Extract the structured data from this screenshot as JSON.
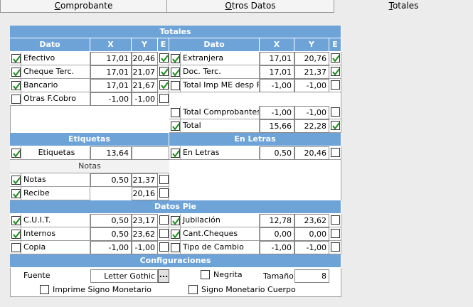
{
  "tabs": [
    "Comprobante",
    "Otros Datos",
    "Totales"
  ],
  "totales": {
    "title": "Totales",
    "headers": [
      "Dato",
      "X",
      "Y",
      "E",
      "Dato",
      "X",
      "Y",
      "E"
    ],
    "left_rows": [
      {
        "checked": true,
        "label": "Efectivo",
        "x": "17,01",
        "y": "20,46",
        "e": true
      },
      {
        "checked": true,
        "label": "Cheque Terc.",
        "x": "17,01",
        "y": "21,07",
        "e": true
      },
      {
        "checked": true,
        "label": "Bancario",
        "x": "17,01",
        "y": "21,67",
        "e": true
      },
      {
        "checked": false,
        "label": "Otras F.Cobro",
        "x": "-1,00",
        "y": "-1,00",
        "e": false
      }
    ],
    "right_rows": [
      {
        "checked": true,
        "label": "Extranjera",
        "x": "17,01",
        "y": "20,76",
        "e": true
      },
      {
        "checked": true,
        "label": "Doc. Terc.",
        "x": "17,01",
        "y": "21,37",
        "e": true
      },
      {
        "checked": false,
        "label": "Total Imp ME desp PP",
        "x": "-1,00",
        "y": "-1,00",
        "e": false
      }
    ],
    "right_totals": [
      {
        "checked": false,
        "label": "Total Comprobantes",
        "x": "-1,00",
        "y": "-1,00",
        "e": false
      },
      {
        "checked": true,
        "label": "Total",
        "x": "15,66",
        "y": "22,28",
        "e": true
      }
    ]
  },
  "etiquetas": {
    "title": "Etiquetas",
    "row": {
      "checked": true,
      "label": "Etiquetas",
      "x": "13,64"
    }
  },
  "en_letras": {
    "title": "En Letras",
    "row": {
      "checked": true,
      "label": "En Letras",
      "x": "0,50",
      "y": "20,46",
      "e": false
    }
  },
  "notas": {
    "title": "Notas",
    "rows": [
      {
        "checked": true,
        "label": "Notas",
        "x": "0,50",
        "y": "21,37",
        "e": false
      },
      {
        "checked": true,
        "label": "Recibe",
        "y": "20,16",
        "e": false
      }
    ]
  },
  "datos_pie": {
    "title": "Datos Pie",
    "left_rows": [
      {
        "checked": true,
        "label": "C.U.I.T.",
        "x": "0,50",
        "y": "23,17",
        "e": false
      },
      {
        "checked": true,
        "label": "Internos",
        "x": "0,50",
        "y": "23,62",
        "e": false
      },
      {
        "checked": false,
        "label": "Copia",
        "x": "-1,00",
        "y": "-1,00",
        "e": false
      }
    ],
    "right_rows": [
      {
        "checked": true,
        "label": "Jubilación",
        "x": "12,78",
        "y": "23,62",
        "e": false
      },
      {
        "checked": true,
        "label": "Cant.Cheques",
        "x": "0,00",
        "y": "0,00",
        "e": false
      },
      {
        "checked": false,
        "label": "Tipo de Cambio",
        "x": "-1,00",
        "y": "-1,00",
        "e": false
      }
    ]
  },
  "configuraciones": {
    "title": "Configuraciones",
    "fuente_label": "Fuente",
    "fuente_value": "Letter Gothic",
    "fuente_button": "...",
    "negrita": {
      "label": "Negrita",
      "checked": false
    },
    "tamano_label": "Tamaño",
    "tamano_value": "8",
    "imprime_signo": {
      "label": "Imprime Signo Monetario",
      "checked": false
    },
    "signo_cuerpo": {
      "label": "Signo Monetario Cuerpo",
      "checked": false
    }
  }
}
